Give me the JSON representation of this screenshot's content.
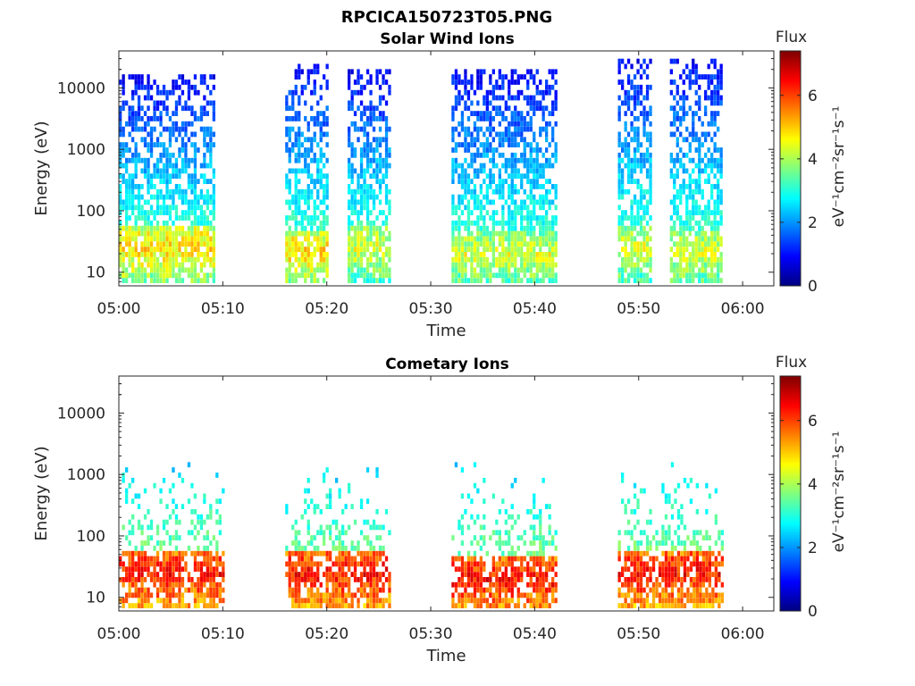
{
  "figure": {
    "title": "RPCICA150723T05.PNG"
  },
  "colorbar": {
    "label": "Flux",
    "units": "eV⁻¹cm⁻²sr⁻¹s⁻¹",
    "ticks": [
      "0",
      "2",
      "4",
      "6"
    ],
    "range": [
      0,
      7.4
    ],
    "colormap": "jet"
  },
  "chart_data": [
    {
      "type": "heatmap",
      "title": "Solar Wind Ions",
      "xlabel": "Time",
      "ylabel": "Energy (eV)",
      "yscale": "log",
      "xlim": [
        "05:00",
        "06:03"
      ],
      "ylim": [
        6,
        40000
      ],
      "x_ticks": [
        "05:00",
        "05:10",
        "05:20",
        "05:30",
        "05:40",
        "05:50",
        "06:00"
      ],
      "y_ticks": [
        "10",
        "100",
        "1000",
        "10000"
      ],
      "bursts": [
        {
          "start": "05:00",
          "end": "05:09",
          "peak_energy_eV": 25,
          "peak_flux": 5.5,
          "upper_energy_eV": 12000
        },
        {
          "start": "05:16",
          "end": "05:20",
          "peak_energy_eV": 22,
          "peak_flux": 5.5,
          "upper_energy_eV": 20000
        },
        {
          "start": "05:22",
          "end": "05:26",
          "peak_energy_eV": 25,
          "peak_flux": 5.0,
          "upper_energy_eV": 15000
        },
        {
          "start": "05:32",
          "end": "05:42",
          "peak_energy_eV": 20,
          "peak_flux": 5.0,
          "upper_energy_eV": 15000
        },
        {
          "start": "05:48",
          "end": "05:51",
          "peak_energy_eV": 25,
          "peak_flux": 5.0,
          "upper_energy_eV": 25000
        },
        {
          "start": "05:53",
          "end": "05:58",
          "peak_energy_eV": 22,
          "peak_flux": 5.0,
          "upper_energy_eV": 25000
        }
      ]
    },
    {
      "type": "heatmap",
      "title": "Cometary Ions",
      "xlabel": "Time",
      "ylabel": "Energy (eV)",
      "yscale": "log",
      "xlim": [
        "05:00",
        "06:03"
      ],
      "ylim": [
        6,
        40000
      ],
      "x_ticks": [
        "05:00",
        "05:10",
        "05:20",
        "05:30",
        "05:40",
        "05:50",
        "06:00"
      ],
      "y_ticks": [
        "10",
        "100",
        "1000",
        "10000"
      ],
      "bursts": [
        {
          "start": "05:00",
          "end": "05:10",
          "peak_energy_eV": 25,
          "peak_flux": 7.0,
          "upper_energy_eV": 1200
        },
        {
          "start": "05:16",
          "end": "05:26",
          "peak_energy_eV": 25,
          "peak_flux": 7.0,
          "upper_energy_eV": 1000
        },
        {
          "start": "05:32",
          "end": "05:42",
          "peak_energy_eV": 20,
          "peak_flux": 7.0,
          "upper_energy_eV": 1300
        },
        {
          "start": "05:48",
          "end": "05:58",
          "peak_energy_eV": 25,
          "peak_flux": 7.0,
          "upper_energy_eV": 1500
        }
      ]
    }
  ]
}
